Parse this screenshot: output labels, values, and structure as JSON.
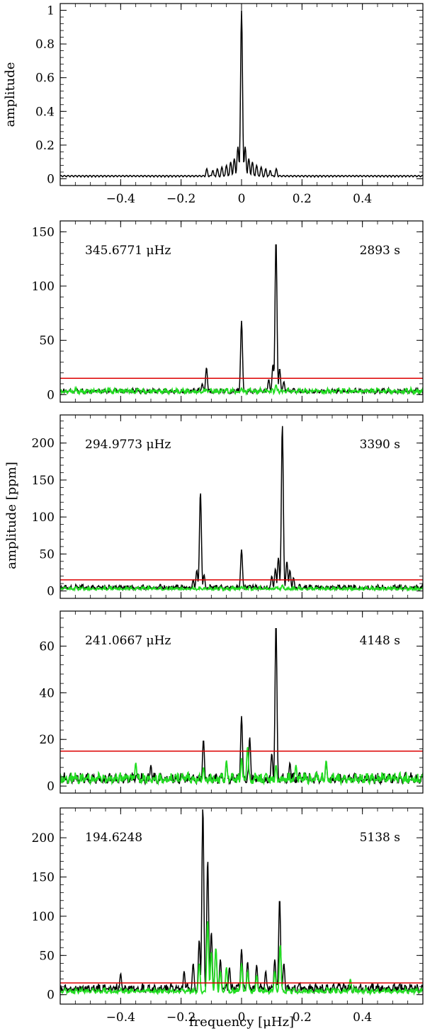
{
  "chart_data": [
    {
      "type": "line",
      "panel": "spectral-window",
      "ylabel": "amplitude",
      "xlim": [
        -0.6,
        0.6
      ],
      "ylim": [
        -0.04,
        1.04
      ],
      "yticks": [
        0,
        0.2,
        0.4,
        0.6,
        0.8,
        1
      ],
      "ytick_labels": [
        "0",
        "0.2",
        "0.4",
        "0.6",
        "0.8",
        "1"
      ],
      "show_xtick_labels": true,
      "series": [
        {
          "color": "#000000",
          "peaks": [
            [
              0,
              1.0
            ],
            [
              -0.012,
              0.19
            ],
            [
              0.012,
              0.19
            ],
            [
              -0.024,
              0.12
            ],
            [
              0.024,
              0.12
            ],
            [
              -0.036,
              0.1
            ],
            [
              0.036,
              0.1
            ],
            [
              -0.05,
              0.08
            ],
            [
              0.05,
              0.08
            ],
            [
              -0.065,
              0.07
            ],
            [
              0.065,
              0.07
            ],
            [
              -0.08,
              0.06
            ],
            [
              0.08,
              0.06
            ],
            [
              -0.095,
              0.05
            ],
            [
              0.095,
              0.05
            ],
            [
              -0.115,
              0.06
            ],
            [
              0.115,
              0.06
            ]
          ],
          "noise": 0.02
        }
      ]
    },
    {
      "type": "line",
      "panel": "mode-1",
      "frequency_label": "345.6771 μHz",
      "period_label": "2893 s",
      "xlim": [
        -0.6,
        0.6
      ],
      "ylim": [
        -7,
        160
      ],
      "yticks": [
        0,
        50,
        100,
        150
      ],
      "ytick_labels": [
        "0",
        "50",
        "100",
        "150"
      ],
      "threshold": 15,
      "show_xtick_labels": false,
      "series": [
        {
          "color": "#000000",
          "peaks": [
            [
              0.114,
              143
            ],
            [
              0.0,
              68
            ],
            [
              -0.116,
              25
            ],
            [
              0.104,
              28
            ],
            [
              0.126,
              24
            ],
            [
              -0.13,
              10
            ],
            [
              0.09,
              14
            ],
            [
              0.14,
              12
            ]
          ],
          "noise": 4
        },
        {
          "color": "#22dd22",
          "peaks": [
            [
              0.0,
              6
            ],
            [
              0.114,
              9
            ],
            [
              -0.116,
              5
            ]
          ],
          "noise": 4
        }
      ]
    },
    {
      "type": "line",
      "panel": "mode-2",
      "frequency_label": "294.9773 μHz",
      "period_label": "3390 s",
      "xlim": [
        -0.6,
        0.6
      ],
      "ylim": [
        -10,
        238
      ],
      "yticks": [
        0,
        50,
        100,
        150,
        200
      ],
      "ytick_labels": [
        "0",
        "50",
        "100",
        "150",
        "200"
      ],
      "threshold": 15,
      "show_xtick_labels": false,
      "series": [
        {
          "color": "#000000",
          "peaks": [
            [
              0.135,
              225
            ],
            [
              -0.136,
              134
            ],
            [
              0.0,
              56
            ],
            [
              0.122,
              45
            ],
            [
              0.15,
              40
            ],
            [
              0.112,
              30
            ],
            [
              0.16,
              28
            ],
            [
              -0.148,
              28
            ],
            [
              -0.124,
              22
            ],
            [
              0.1,
              20
            ],
            [
              0.172,
              18
            ],
            [
              -0.16,
              15
            ]
          ],
          "noise": 6
        },
        {
          "color": "#22dd22",
          "peaks": [
            [
              0.0,
              6
            ],
            [
              0.135,
              8
            ]
          ],
          "noise": 4
        }
      ]
    },
    {
      "type": "line",
      "panel": "mode-3",
      "frequency_label": "241.0667 μHz",
      "period_label": "4148 s",
      "xlim": [
        -0.6,
        0.6
      ],
      "ylim": [
        -3,
        75
      ],
      "yticks": [
        0,
        20,
        40,
        60
      ],
      "ytick_labels": [
        "0",
        "20",
        "40",
        "60"
      ],
      "threshold": 15,
      "show_xtick_labels": false,
      "series": [
        {
          "color": "#000000",
          "peaks": [
            [
              0.114,
              70
            ],
            [
              0.0,
              30
            ],
            [
              0.027,
              21
            ],
            [
              -0.126,
              20
            ],
            [
              0.1,
              14
            ],
            [
              -0.05,
              10
            ],
            [
              0.16,
              10
            ],
            [
              -0.3,
              9
            ],
            [
              0.28,
              10
            ]
          ],
          "noise": 4
        },
        {
          "color": "#22dd22",
          "peaks": [
            [
              0.02,
              17
            ],
            [
              0.0,
              12
            ],
            [
              -0.05,
              11
            ],
            [
              0.28,
              11
            ],
            [
              -0.35,
              10
            ],
            [
              0.114,
              9
            ],
            [
              -0.126,
              8
            ],
            [
              0.18,
              9
            ]
          ],
          "noise": 4
        }
      ]
    },
    {
      "type": "line",
      "panel": "mode-4",
      "frequency_label": "194.6248",
      "period_label": "5138 s",
      "xlabel": "frequency [μHz]",
      "xlim": [
        -0.6,
        0.6
      ],
      "ylim": [
        -12,
        238
      ],
      "yticks": [
        0,
        50,
        100,
        150,
        200
      ],
      "ytick_labels": [
        "0",
        "50",
        "100",
        "150",
        "200"
      ],
      "xticks": [
        -0.4,
        -0.2,
        0,
        0.2,
        0.4
      ],
      "xtick_labels": [
        "−0.4",
        "−0.2",
        "0",
        "0.2",
        "0.4"
      ],
      "threshold": 15,
      "show_xtick_labels": true,
      "series": [
        {
          "color": "#000000",
          "peaks": [
            [
              -0.128,
              240
            ],
            [
              -0.112,
              172
            ],
            [
              0.126,
              123
            ],
            [
              -0.1,
              80
            ],
            [
              -0.14,
              70
            ],
            [
              -0.085,
              60
            ],
            [
              0.0,
              58
            ],
            [
              -0.07,
              45
            ],
            [
              0.11,
              45
            ],
            [
              -0.16,
              40
            ],
            [
              0.02,
              42
            ],
            [
              0.05,
              38
            ],
            [
              -0.04,
              35
            ],
            [
              0.14,
              40
            ],
            [
              -0.4,
              27
            ],
            [
              0.08,
              30
            ],
            [
              -0.19,
              30
            ]
          ],
          "noise": 10
        },
        {
          "color": "#22dd22",
          "peaks": [
            [
              -0.112,
              95
            ],
            [
              0.128,
              64
            ],
            [
              -0.085,
              60
            ],
            [
              -0.1,
              55
            ],
            [
              0.0,
              40
            ],
            [
              0.02,
              30
            ],
            [
              -0.05,
              35
            ],
            [
              0.11,
              30
            ],
            [
              -0.14,
              40
            ],
            [
              -0.07,
              30
            ],
            [
              0.05,
              25
            ],
            [
              0.36,
              20
            ]
          ],
          "noise": 6
        }
      ]
    }
  ],
  "labels": {
    "ylabel_shared": "amplitude [ppm]",
    "ylabel_top": "amplitude",
    "xlabel_bottom": "frequency [μHz]"
  },
  "colors": {
    "threshold": "#dd0000",
    "data": "#000000",
    "residual": "#22dd22"
  }
}
